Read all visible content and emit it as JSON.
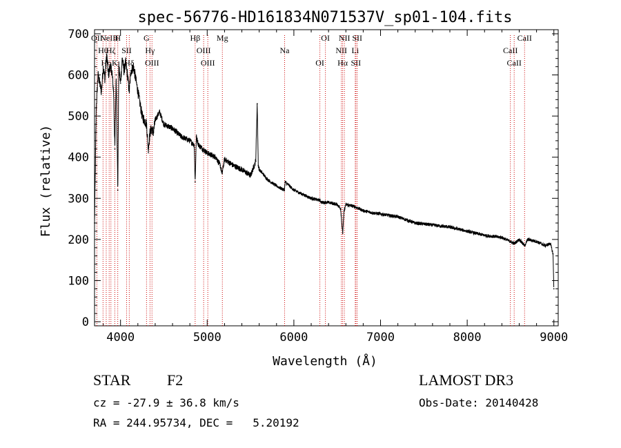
{
  "chart_data": {
    "type": "line",
    "title": "spec-56776-HD161834N071537V_sp01-104.fits",
    "xlabel": "Wavelength (Å)",
    "ylabel": "Flux (relative)",
    "xlim": [
      3700,
      9050
    ],
    "ylim": [
      -10,
      710
    ],
    "x_ticks": [
      4000,
      5000,
      6000,
      7000,
      8000,
      9000
    ],
    "y_ticks": [
      0,
      100,
      200,
      300,
      400,
      500,
      600,
      700
    ],
    "grid": false,
    "line_color": "#000000",
    "marker_color": "#cc0000",
    "spectrum": {
      "x": [
        3700,
        3720,
        3740,
        3760,
        3780,
        3800,
        3820,
        3840,
        3860,
        3880,
        3900,
        3920,
        3935,
        3950,
        3968,
        3980,
        4000,
        4020,
        4040,
        4060,
        4080,
        4101,
        4120,
        4150,
        4200,
        4250,
        4300,
        4320,
        4340,
        4360,
        4380,
        4400,
        4450,
        4500,
        4600,
        4700,
        4800,
        4850,
        4861,
        4875,
        4900,
        5000,
        5100,
        5150,
        5172,
        5200,
        5300,
        5400,
        5500,
        5560,
        5577,
        5590,
        5600,
        5700,
        5800,
        5890,
        5900,
        6000,
        6100,
        6200,
        6300,
        6320,
        6400,
        6500,
        6540,
        6563,
        6580,
        6600,
        6700,
        6800,
        6900,
        7000,
        7200,
        7400,
        7600,
        7800,
        8000,
        8200,
        8400,
        8498,
        8542,
        8600,
        8662,
        8700,
        8800,
        8900,
        8960,
        8990,
        9000
      ],
      "y": [
        240,
        520,
        600,
        580,
        560,
        620,
        590,
        650,
        600,
        620,
        610,
        560,
        420,
        600,
        320,
        620,
        580,
        640,
        610,
        630,
        600,
        560,
        610,
        620,
        560,
        500,
        480,
        420,
        460,
        470,
        460,
        490,
        510,
        480,
        470,
        450,
        440,
        430,
        340,
        450,
        430,
        410,
        400,
        380,
        360,
        395,
        380,
        370,
        355,
        390,
        530,
        380,
        370,
        345,
        330,
        320,
        340,
        320,
        310,
        300,
        295,
        290,
        290,
        285,
        275,
        215,
        270,
        285,
        280,
        270,
        265,
        262,
        255,
        240,
        235,
        230,
        220,
        210,
        205,
        195,
        190,
        200,
        185,
        200,
        195,
        185,
        190,
        165,
        80
      ]
    },
    "lines": [
      {
        "label": "OII",
        "wavelength": 3727
      },
      {
        "label": "Hθ",
        "wavelength": 3798
      },
      {
        "label": "Hη",
        "wavelength": 3835
      },
      {
        "label": "NeIII",
        "wavelength": 3869
      },
      {
        "label": "Hζ",
        "wavelength": 3889
      },
      {
        "label": "K",
        "wavelength": 3934
      },
      {
        "label": "H",
        "wavelength": 3968
      },
      {
        "label": "SII",
        "wavelength": 4070
      },
      {
        "label": "Hδ",
        "wavelength": 4101
      },
      {
        "label": "G",
        "wavelength": 4300
      },
      {
        "label": "Hγ",
        "wavelength": 4340
      },
      {
        "label": "OIII",
        "wavelength": 4363
      },
      {
        "label": "Hβ",
        "wavelength": 4861
      },
      {
        "label": "OIII",
        "wavelength": 4959
      },
      {
        "label": "OIII",
        "wavelength": 5007
      },
      {
        "label": "Mg",
        "wavelength": 5175
      },
      {
        "label": "Na",
        "wavelength": 5893
      },
      {
        "label": "OI",
        "wavelength": 6300
      },
      {
        "label": "OI",
        "wavelength": 6364
      },
      {
        "label": "NII",
        "wavelength": 6548
      },
      {
        "label": "Hα",
        "wavelength": 6563
      },
      {
        "label": "NII",
        "wavelength": 6583
      },
      {
        "label": "Li",
        "wavelength": 6708
      },
      {
        "label": "SII",
        "wavelength": 6716
      },
      {
        "label": "SII",
        "wavelength": 6731
      },
      {
        "label": "CaII",
        "wavelength": 8498
      },
      {
        "label": "CaII",
        "wavelength": 8542
      },
      {
        "label": "CaII",
        "wavelength": 8662
      }
    ]
  },
  "info": {
    "object_class": "STAR",
    "subclass": "F2",
    "survey": "LAMOST DR3",
    "redshift": "cz = -27.9 ± 36.8 km/s",
    "obs_date": "Obs-Date: 20140428",
    "coords": "RA = 244.95734, DEC =   5.20192"
  }
}
